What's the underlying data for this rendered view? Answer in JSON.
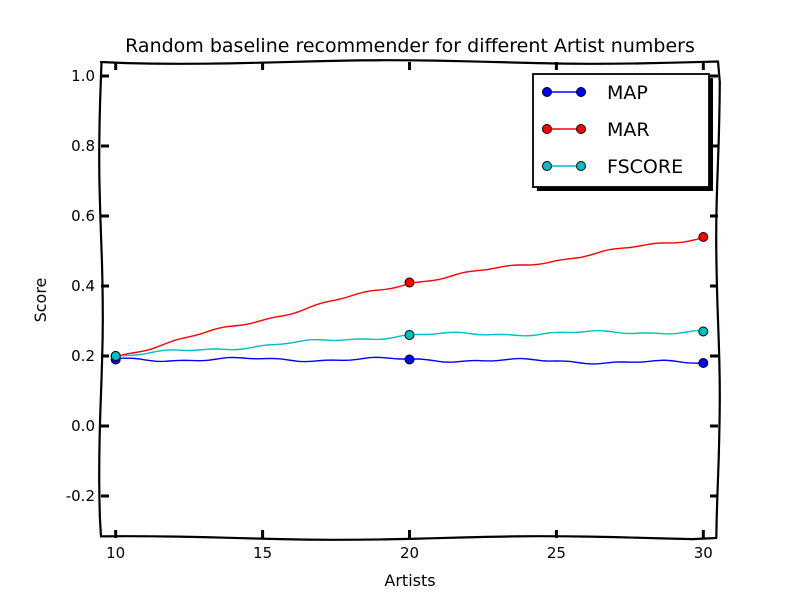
{
  "chart_data": {
    "type": "line",
    "title": "Random baseline recommender for different Artist numbers",
    "xlabel": "Artists",
    "ylabel": "Score",
    "xlim": [
      9.5,
      30.5
    ],
    "ylim": [
      -0.32,
      1.04
    ],
    "xticks": [
      10,
      15,
      20,
      25,
      30
    ],
    "xtick_labels": [
      "10",
      "15",
      "20",
      "25",
      "30"
    ],
    "yticks": [
      -0.2,
      0.0,
      0.2,
      0.4,
      0.6,
      0.8,
      1.0
    ],
    "ytick_labels": [
      "-0.2",
      "0.0",
      "0.2",
      "0.4",
      "0.6",
      "0.8",
      "1.0"
    ],
    "grid": false,
    "legend_position": "top-right",
    "x": [
      10,
      20,
      30
    ],
    "series": [
      {
        "name": "MAP",
        "color": "#0000ff",
        "marker_color": "#0000ff",
        "values": [
          0.19,
          0.19,
          0.18
        ]
      },
      {
        "name": "MAR",
        "color": "#ff0000",
        "marker_color": "#ff0000",
        "values": [
          0.2,
          0.41,
          0.54
        ]
      },
      {
        "name": "FSCORE",
        "color": "#00bfbf",
        "marker_color": "#00bfbf",
        "values": [
          0.2,
          0.26,
          0.27
        ]
      }
    ]
  }
}
